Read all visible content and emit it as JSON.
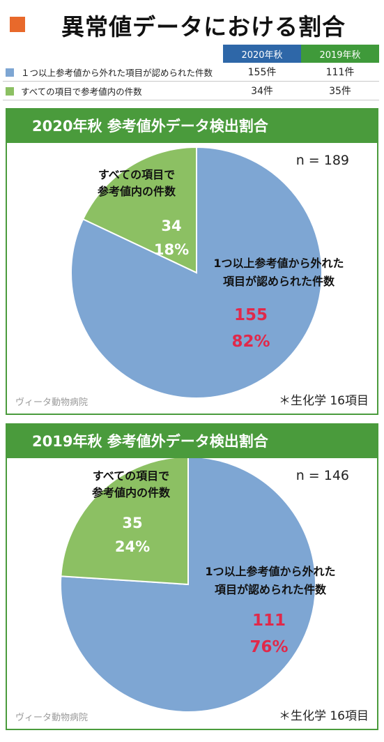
{
  "title": "異常値データにおける割合",
  "colors": {
    "accent": "#e8692b",
    "blue": "#7ea6d3",
    "green": "#8cc063",
    "panel_green": "#4a9b3c",
    "header_2020": "#2e67a8",
    "header_2019": "#3f9a3a",
    "value_red": "#e0294a"
  },
  "summary": {
    "col_2020": "2020年秋",
    "col_2019": "2019年秋",
    "rows": [
      {
        "label": "１つ以上参考値から外れた項目が認められた件数",
        "v2020": "155件",
        "v2019": "111件",
        "color": "#7ea6d3"
      },
      {
        "label": "すべての項目で参考値内の件数",
        "v2020": "34件",
        "v2019": "35件",
        "color": "#8cc063"
      }
    ]
  },
  "chart_data": [
    {
      "type": "pie",
      "title": "2020年秋 参考値外データ検出割合",
      "n_label": "n = 189",
      "slices": [
        {
          "label_lines": [
            "1つ以上参考値から外れた",
            "項目が認められた件数"
          ],
          "count": "155",
          "percent": "82%",
          "value": 155,
          "color": "#7ea6d3"
        },
        {
          "label_lines": [
            "すべての項目で",
            "参考値内の件数"
          ],
          "count": "34",
          "percent": "18%",
          "value": 34,
          "color": "#8cc063"
        }
      ],
      "watermark": "ヴィータ動物病院",
      "footnote": "＊生化学 16項目"
    },
    {
      "type": "pie",
      "title": "2019年秋 参考値外データ検出割合",
      "n_label": "n = 146",
      "slices": [
        {
          "label_lines": [
            "1つ以上参考値から外れた",
            "項目が認められた件数"
          ],
          "count": "111",
          "percent": "76%",
          "value": 111,
          "color": "#7ea6d3"
        },
        {
          "label_lines": [
            "すべての項目で",
            "参考値内の件数"
          ],
          "count": "35",
          "percent": "24%",
          "value": 35,
          "color": "#8cc063"
        }
      ],
      "watermark": "ヴィータ動物病院",
      "footnote": "＊生化学 16項目"
    }
  ]
}
